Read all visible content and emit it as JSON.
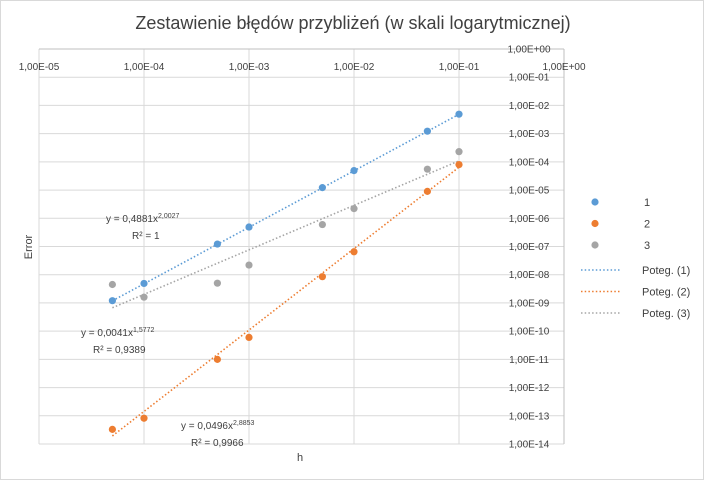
{
  "chart_data": {
    "type": "scatter",
    "title": "Zestawienie błędów przybliżeń (w skali logarytmicznej)",
    "xlabel": "h",
    "ylabel": "Error",
    "x_scale": "log",
    "y_scale": "log",
    "xlim": [
      1e-05,
      1
    ],
    "ylim": [
      1e-14,
      1
    ],
    "x_tick_labels": [
      "1,00E-05",
      "1,00E-04",
      "1,00E-03",
      "1,00E-02",
      "1,00E-01",
      "1,00E+00"
    ],
    "y_tick_labels": [
      "1,00E+00",
      "1,00E-01",
      "1,00E-02",
      "1,00E-03",
      "1,00E-04",
      "1,00E-05",
      "1,00E-06",
      "1,00E-07",
      "1,00E-08",
      "1,00E-09",
      "1,00E-10",
      "1,00E-11",
      "1,00E-12",
      "1,00E-13",
      "1,00E-14"
    ],
    "grid": true,
    "legend_position": "right",
    "series": [
      {
        "name": "1",
        "color": "#5b9bd5",
        "x": [
          5e-05,
          0.0001,
          0.0005,
          0.001,
          0.005,
          0.01,
          0.05,
          0.1
        ],
        "y": [
          1.2e-09,
          4.9e-09,
          1.22e-07,
          4.9e-07,
          1.22e-05,
          4.9e-05,
          0.00122,
          0.0049
        ]
      },
      {
        "name": "2",
        "color": "#ed7d31",
        "x": [
          5e-05,
          0.0001,
          0.0005,
          0.001,
          0.005,
          0.01,
          0.05,
          0.1
        ],
        "y": [
          3.3e-14,
          8.2e-14,
          1e-11,
          6e-11,
          8.5e-09,
          6.5e-08,
          9e-06,
          8e-05
        ]
      },
      {
        "name": "3",
        "color": "#a5a5a5",
        "x": [
          5e-05,
          0.0001,
          0.0005,
          0.001,
          0.005,
          0.01,
          0.05,
          0.1
        ],
        "y": [
          4.5e-09,
          1.6e-09,
          5e-09,
          2.2e-08,
          6e-07,
          2.2e-06,
          5.5e-05,
          0.00023
        ]
      }
    ],
    "trendlines": [
      {
        "name": "Poteg. (1)",
        "color": "#5b9bd5",
        "a": 0.4881,
        "b": 2.0027,
        "x_range": [
          5e-05,
          0.1
        ],
        "label_eq": "y = 0,4881x",
        "label_exp": "2,0027",
        "label_r2": "R² = 1"
      },
      {
        "name": "Poteg. (2)",
        "color": "#ed7d31",
        "a": 0.0496,
        "b": 2.8853,
        "x_range": [
          5e-05,
          0.1
        ],
        "label_eq": "y = 0,0496x",
        "label_exp": "2,8853",
        "label_r2": "R² = 0,9966"
      },
      {
        "name": "Poteg. (3)",
        "color": "#a5a5a5",
        "a": 0.0041,
        "b": 1.5772,
        "x_range": [
          5e-05,
          0.1
        ],
        "label_eq": "y = 0,0041x",
        "label_exp": "1,5772",
        "label_r2": "R² = 0,9389"
      }
    ]
  }
}
